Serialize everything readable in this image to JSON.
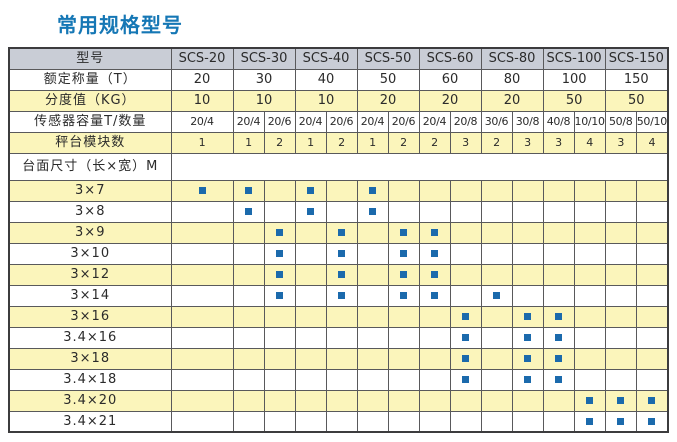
{
  "title": "常用规格型号",
  "colors": {
    "title_blue": "#1577b5",
    "header_bg": "#c9cdd6",
    "row_yellow": "#fbf5bb",
    "row_white": "#ffffff",
    "grid": "#59595b",
    "outer": "#3c3c3e",
    "dot": "#1b6aac",
    "text": "#2b2b2b"
  },
  "table": {
    "corner_label": "型号",
    "models": [
      "SCS-20",
      "SCS-30",
      "SCS-40",
      "SCS-50",
      "SCS-60",
      "SCS-80",
      "SCS-100",
      "SCS-150"
    ],
    "spec_rows": [
      {
        "label": "额定称量（T）",
        "span": "model",
        "values": [
          "20",
          "30",
          "40",
          "50",
          "60",
          "80",
          "100",
          "150"
        ]
      },
      {
        "label": "分度值（KG）",
        "span": "model",
        "values": [
          "10",
          "10",
          "10",
          "20",
          "20",
          "20",
          "50",
          "50"
        ]
      },
      {
        "label": "传感器容量T/数量",
        "span": "sub",
        "values": [
          "20/4",
          "20/4",
          "20/6",
          "20/4",
          "20/6",
          "20/4",
          "20/6",
          "20/4",
          "20/8",
          "30/6",
          "30/8",
          "40/8",
          "10/10",
          "50/8",
          "50/10"
        ]
      },
      {
        "label": "秤台模块数",
        "span": "sub",
        "values": [
          "1",
          "1",
          "2",
          "1",
          "2",
          "1",
          "2",
          "2",
          "3",
          "2",
          "3",
          "3",
          "4",
          "3",
          "4"
        ]
      }
    ],
    "size_section_label": "台面尺寸（长×宽）M",
    "sub_column_keys": [
      "SCS-20",
      "SCS-30-a",
      "SCS-30-b",
      "SCS-40-a",
      "SCS-40-b",
      "SCS-50-a",
      "SCS-50-b",
      "SCS-60-a",
      "SCS-60-b",
      "SCS-80-a",
      "SCS-80-b",
      "SCS-100-a",
      "SCS-100-b",
      "SCS-150-a",
      "SCS-150-b"
    ],
    "dot_icon": "blue-square-dot",
    "size_rows": [
      {
        "label": "3×7",
        "dots": [
          0,
          1,
          3,
          5
        ]
      },
      {
        "label": "3×8",
        "dots": [
          1,
          3,
          5
        ]
      },
      {
        "label": "3×9",
        "dots": [
          2,
          4,
          6,
          7
        ]
      },
      {
        "label": "3×10",
        "dots": [
          2,
          4,
          6,
          7
        ]
      },
      {
        "label": "3×12",
        "dots": [
          2,
          4,
          6,
          7
        ]
      },
      {
        "label": "3×14",
        "dots": [
          2,
          4,
          6,
          7,
          9
        ]
      },
      {
        "label": "3×16",
        "dots": [
          8,
          10,
          11
        ]
      },
      {
        "label": "3.4×16",
        "dots": [
          8,
          10,
          11
        ]
      },
      {
        "label": "3×18",
        "dots": [
          8,
          10,
          11
        ]
      },
      {
        "label": "3.4×18",
        "dots": [
          8,
          10,
          11
        ]
      },
      {
        "label": "3.4×20",
        "dots": [
          12,
          13,
          14
        ]
      },
      {
        "label": "3.4×21",
        "dots": [
          12,
          13,
          14
        ]
      }
    ]
  }
}
